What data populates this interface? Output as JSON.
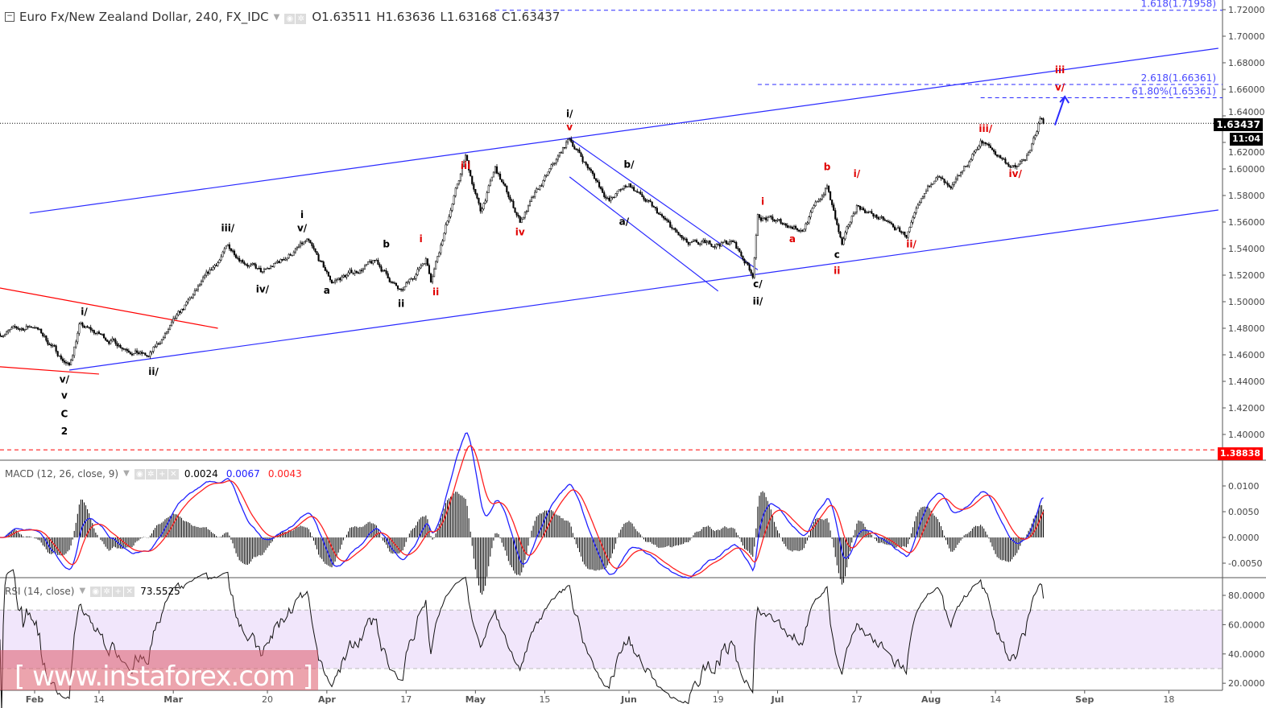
{
  "header": {
    "symbol_title": "Euro Fx/New Zealand Dollar, 240, FX_IDC",
    "open": "O1.63511",
    "high": "H1.63636",
    "low": "L1.63168",
    "close": "C1.63437"
  },
  "macd": {
    "title": "MACD (12, 26, close, 9)",
    "hist_value": "0.0024",
    "macd_value": "0.0067",
    "signal_value": "0.0043",
    "macd_color": "#2020ff",
    "signal_color": "#ff2020",
    "axis_ticks": [
      "0.0100",
      "0.0050",
      "0.0000",
      "-0.0050"
    ]
  },
  "rsi": {
    "title": "RSI (14, close)",
    "value": "73.5525",
    "band": [
      30,
      70
    ],
    "band_color": "#f1e6fb",
    "axis_ticks": [
      "80.0000",
      "60.0000",
      "40.0000",
      "20.0000"
    ]
  },
  "badges": {
    "last_price": "1.63437",
    "countdown": "11:04",
    "red_level": "1.38838"
  },
  "watermark": "[  www.instaforex.com ]",
  "chart_data": {
    "type": "candlestick",
    "timeframe": "240",
    "ylim": [
      1.39,
      1.725
    ],
    "y_ticks": [
      "1.72000",
      "1.70000",
      "1.68000",
      "1.66000",
      "1.64000",
      "1.62000",
      "1.60000",
      "1.58000",
      "1.56000",
      "1.54000",
      "1.52000",
      "1.50000",
      "1.48000",
      "1.46000",
      "1.44000",
      "1.42000",
      "1.40000"
    ],
    "x_ticks": [
      {
        "label": "Feb",
        "date": "2018-02-01",
        "month": true
      },
      {
        "label": "14",
        "date": "2018-02-14"
      },
      {
        "label": "Mar",
        "date": "2018-03-01",
        "month": true
      },
      {
        "label": "20",
        "date": "2018-03-20"
      },
      {
        "label": "Apr",
        "date": "2018-04-01",
        "month": true
      },
      {
        "label": "17",
        "date": "2018-04-17"
      },
      {
        "label": "May",
        "date": "2018-05-01",
        "month": true
      },
      {
        "label": "15",
        "date": "2018-05-15"
      },
      {
        "label": "Jun",
        "date": "2018-06-01",
        "month": true
      },
      {
        "label": "19",
        "date": "2018-06-19"
      },
      {
        "label": "Jul",
        "date": "2018-07-01",
        "month": true
      },
      {
        "label": "17",
        "date": "2018-07-17"
      },
      {
        "label": "Aug",
        "date": "2018-08-01",
        "month": true
      },
      {
        "label": "14",
        "date": "2018-08-14"
      },
      {
        "label": "Sep",
        "date": "2018-09-01",
        "month": true
      },
      {
        "label": "18",
        "date": "2018-09-18"
      }
    ],
    "price_path": [
      [
        "2018-01-25",
        1.476
      ],
      [
        "2018-02-01",
        1.482
      ],
      [
        "2018-02-08",
        1.451
      ],
      [
        "2018-02-10",
        1.482
      ],
      [
        "2018-02-24",
        1.458
      ],
      [
        "2018-03-03",
        1.494
      ],
      [
        "2018-03-12",
        1.541
      ],
      [
        "2018-03-19",
        1.521
      ],
      [
        "2018-03-28",
        1.545
      ],
      [
        "2018-04-02",
        1.515
      ],
      [
        "2018-04-11",
        1.53
      ],
      [
        "2018-04-16",
        1.506
      ],
      [
        "2018-04-21",
        1.533
      ],
      [
        "2018-04-22",
        1.518
      ],
      [
        "2018-04-29",
        1.609
      ],
      [
        "2018-05-02",
        1.567
      ],
      [
        "2018-05-05",
        1.6
      ],
      [
        "2018-05-10",
        1.561
      ],
      [
        "2018-05-20",
        1.623
      ],
      [
        "2018-05-28",
        1.576
      ],
      [
        "2018-06-01",
        1.589
      ],
      [
        "2018-06-13",
        1.542
      ],
      [
        "2018-06-22",
        1.545
      ],
      [
        "2018-06-26",
        1.521
      ],
      [
        "2018-06-27",
        1.564
      ],
      [
        "2018-07-06",
        1.555
      ],
      [
        "2018-07-11",
        1.587
      ],
      [
        "2018-07-14",
        1.542
      ],
      [
        "2018-07-17",
        1.573
      ],
      [
        "2018-07-27",
        1.55
      ],
      [
        "2018-08-02",
        1.597
      ],
      [
        "2018-08-05",
        1.582
      ],
      [
        "2018-08-11",
        1.621
      ],
      [
        "2018-08-18",
        1.6
      ],
      [
        "2018-08-21",
        1.612
      ],
      [
        "2018-08-23",
        1.638
      ],
      [
        "2018-08-24",
        1.63437
      ]
    ],
    "last_close": 1.63437,
    "horizontal_levels": [
      {
        "price": 1.71958,
        "from": "2018-05-05",
        "color": "#2a2aff",
        "style": "dashed",
        "label": "1.618(1.71958)"
      },
      {
        "price": 1.66361,
        "from": "2018-06-27",
        "color": "#2a2aff",
        "style": "dashed",
        "label": "2.618(1.66361)"
      },
      {
        "price": 1.65361,
        "from": "2018-08-11",
        "color": "#2a2aff",
        "style": "dashed",
        "label": "61.80%(1.65361)"
      },
      {
        "price": 1.63437,
        "from": "2018-01-25",
        "color": "#000000",
        "style": "dotted",
        "label": ""
      },
      {
        "price": 1.38838,
        "from": "2018-01-25",
        "color": "#ff0000",
        "style": "dashed",
        "label": ""
      }
    ],
    "trendlines": [
      {
        "from": [
          "2018-01-31",
          1.5667
        ],
        "to": [
          "2018-09-28",
          1.6909
        ],
        "color": "#2a2aff"
      },
      {
        "from": [
          "2018-02-08",
          1.4485
        ],
        "to": [
          "2018-09-28",
          1.5691
        ],
        "color": "#2a2aff"
      },
      {
        "from": [
          "2018-05-20",
          1.623
        ],
        "to": [
          "2018-06-27",
          1.524
        ],
        "color": "#2a2aff"
      },
      {
        "from": [
          "2018-05-20",
          1.594
        ],
        "to": [
          "2018-06-19",
          1.508
        ],
        "color": "#2a2aff"
      },
      {
        "from": [
          "2018-01-25",
          1.5103
        ],
        "to": [
          "2018-03-10",
          1.48
        ],
        "color": "#ff0000"
      },
      {
        "from": [
          "2018-01-25",
          1.451
        ],
        "to": [
          "2018-02-14",
          1.4455
        ],
        "color": "#ff0000"
      }
    ],
    "arrow": {
      "from": [
        "2018-08-26",
        1.633
      ],
      "to": [
        "2018-08-28",
        1.6545
      ],
      "color": "#2a2aff"
    },
    "wave_labels": [
      {
        "text": "v/",
        "date": "2018-02-07",
        "price": 1.439,
        "color": "#000"
      },
      {
        "text": "v",
        "date": "2018-02-07",
        "price": 1.427,
        "color": "#000"
      },
      {
        "text": "C",
        "date": "2018-02-07",
        "price": 1.413,
        "color": "#000"
      },
      {
        "text": "2",
        "date": "2018-02-07",
        "price": 1.4,
        "color": "#000"
      },
      {
        "text": "i/",
        "date": "2018-02-11",
        "price": 1.49,
        "color": "#000"
      },
      {
        "text": "ii/",
        "date": "2018-02-25",
        "price": 1.445,
        "color": "#000"
      },
      {
        "text": "iii/",
        "date": "2018-03-12",
        "price": 1.553,
        "color": "#000"
      },
      {
        "text": "i",
        "date": "2018-03-27",
        "price": 1.563,
        "color": "#000"
      },
      {
        "text": "v/",
        "date": "2018-03-27",
        "price": 1.553,
        "color": "#000"
      },
      {
        "text": "iv/",
        "date": "2018-03-19",
        "price": 1.507,
        "color": "#000"
      },
      {
        "text": "a",
        "date": "2018-04-01",
        "price": 1.506,
        "color": "#000"
      },
      {
        "text": "b",
        "date": "2018-04-13",
        "price": 1.541,
        "color": "#000"
      },
      {
        "text": "ii",
        "date": "2018-04-16",
        "price": 1.496,
        "color": "#000"
      },
      {
        "text": "i",
        "date": "2018-04-20",
        "price": 1.545,
        "color": "#e00000"
      },
      {
        "text": "ii",
        "date": "2018-04-23",
        "price": 1.505,
        "color": "#e00000"
      },
      {
        "text": "iii",
        "date": "2018-04-29",
        "price": 1.6,
        "color": "#e00000"
      },
      {
        "text": "iv",
        "date": "2018-05-10",
        "price": 1.55,
        "color": "#e00000"
      },
      {
        "text": "i/",
        "date": "2018-05-20",
        "price": 1.639,
        "color": "#000"
      },
      {
        "text": "v",
        "date": "2018-05-20",
        "price": 1.629,
        "color": "#e00000"
      },
      {
        "text": "b/",
        "date": "2018-06-01",
        "price": 1.601,
        "color": "#000"
      },
      {
        "text": "a/",
        "date": "2018-05-31",
        "price": 1.558,
        "color": "#000"
      },
      {
        "text": "c/",
        "date": "2018-06-27",
        "price": 1.511,
        "color": "#000"
      },
      {
        "text": "ii/",
        "date": "2018-06-27",
        "price": 1.498,
        "color": "#000"
      },
      {
        "text": "i",
        "date": "2018-06-28",
        "price": 1.573,
        "color": "#e00000"
      },
      {
        "text": "a",
        "date": "2018-07-04",
        "price": 1.545,
        "color": "#e00000"
      },
      {
        "text": "b",
        "date": "2018-07-11",
        "price": 1.599,
        "color": "#e00000"
      },
      {
        "text": "i/",
        "date": "2018-07-17",
        "price": 1.594,
        "color": "#e00000"
      },
      {
        "text": "c",
        "date": "2018-07-13",
        "price": 1.533,
        "color": "#000"
      },
      {
        "text": "ii",
        "date": "2018-07-13",
        "price": 1.521,
        "color": "#e00000"
      },
      {
        "text": "ii/",
        "date": "2018-07-28",
        "price": 1.541,
        "color": "#e00000"
      },
      {
        "text": "iii/",
        "date": "2018-08-12",
        "price": 1.628,
        "color": "#e00000"
      },
      {
        "text": "iv/",
        "date": "2018-08-18",
        "price": 1.594,
        "color": "#e00000"
      },
      {
        "text": "iii",
        "date": "2018-08-27",
        "price": 1.672,
        "color": "#e00000"
      },
      {
        "text": "v/",
        "date": "2018-08-27",
        "price": 1.659,
        "color": "#e00000"
      }
    ]
  }
}
